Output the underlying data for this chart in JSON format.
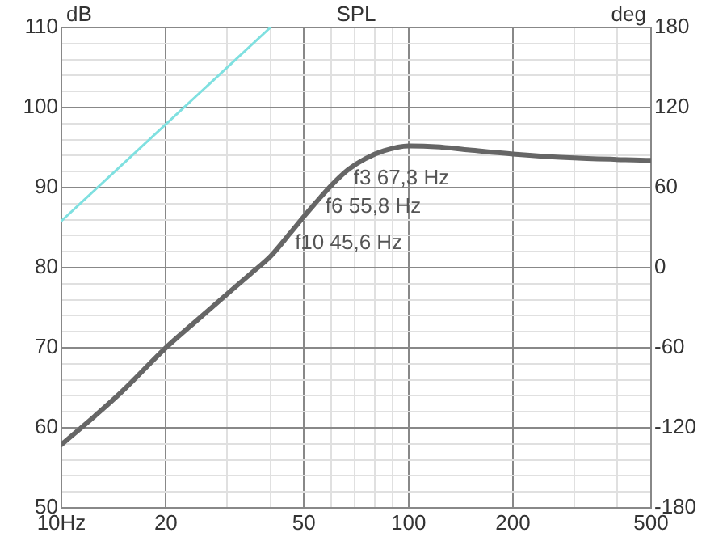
{
  "chart_data": {
    "type": "line",
    "title": "SPL",
    "ylabel": "dB",
    "y2label": "deg",
    "log": "x",
    "grid": true,
    "marker": "none",
    "line_style": "solid",
    "xlim": [
      10,
      500
    ],
    "xticks": [
      {
        "value": 10,
        "label": "10Hz"
      },
      20,
      {
        "value": 30,
        "label": null
      },
      {
        "value": 40,
        "label": null
      },
      50,
      {
        "value": 60,
        "label": null
      },
      {
        "value": 70,
        "label": null
      },
      {
        "value": 80,
        "label": null
      },
      {
        "value": 90,
        "label": null
      },
      100,
      200,
      {
        "value": 300,
        "label": null
      },
      {
        "value": 400,
        "label": null
      },
      500
    ],
    "ylim": [
      50,
      110
    ],
    "yticks": [
      50,
      {
        "value": 52,
        "label": null
      },
      {
        "value": 54,
        "label": null
      },
      {
        "value": 56,
        "label": null
      },
      {
        "value": 58,
        "label": null
      },
      60,
      {
        "value": 62,
        "label": null
      },
      {
        "value": 64,
        "label": null
      },
      {
        "value": 66,
        "label": null
      },
      {
        "value": 68,
        "label": null
      },
      70,
      {
        "value": 72,
        "label": null
      },
      {
        "value": 74,
        "label": null
      },
      {
        "value": 76,
        "label": null
      },
      {
        "value": 78,
        "label": null
      },
      80,
      {
        "value": 82,
        "label": null
      },
      {
        "value": 84,
        "label": null
      },
      {
        "value": 86,
        "label": null
      },
      {
        "value": 88,
        "label": null
      },
      90,
      {
        "value": 92,
        "label": null
      },
      {
        "value": 94,
        "label": null
      },
      {
        "value": 96,
        "label": null
      },
      {
        "value": 98,
        "label": null
      },
      100,
      {
        "value": 102,
        "label": null
      },
      {
        "value": 104,
        "label": null
      },
      {
        "value": 106,
        "label": null
      },
      {
        "value": 108,
        "label": null
      },
      110
    ],
    "y2lim": [
      -180,
      180
    ],
    "y2ticks": [
      -180,
      -120,
      -60,
      0,
      60,
      120,
      180
    ],
    "series": [
      {
        "color": "#666666",
        "x": [
          10,
          12.5,
          15,
          20,
          25,
          30,
          35,
          40,
          45.6,
          50,
          55.8,
          60,
          67.3,
          75,
          85,
          100,
          120,
          150,
          200,
          300,
          500
        ],
        "values": [
          57.9,
          61.5,
          64.6,
          70,
          73.7,
          76.7,
          79.2,
          81.4,
          84.3,
          86.4,
          88.8,
          90.3,
          92.3,
          93.6,
          94.6,
          95.2,
          95.1,
          94.7,
          94.2,
          93.7,
          93.4
        ]
      },
      {
        "color": "#7fe0e0",
        "axis": "y2",
        "x": [
          10,
          40
        ],
        "values": [
          35,
          180
        ]
      }
    ],
    "annotations": [
      {
        "text": "f3 67,3 Hz",
        "x": 67.3,
        "y": 92.3
      },
      {
        "text": "f6 55,8 Hz",
        "x": 55.8,
        "y": 88.8
      },
      {
        "text": "f10 45,6 Hz",
        "x": 45.6,
        "y": 84.3
      }
    ]
  }
}
